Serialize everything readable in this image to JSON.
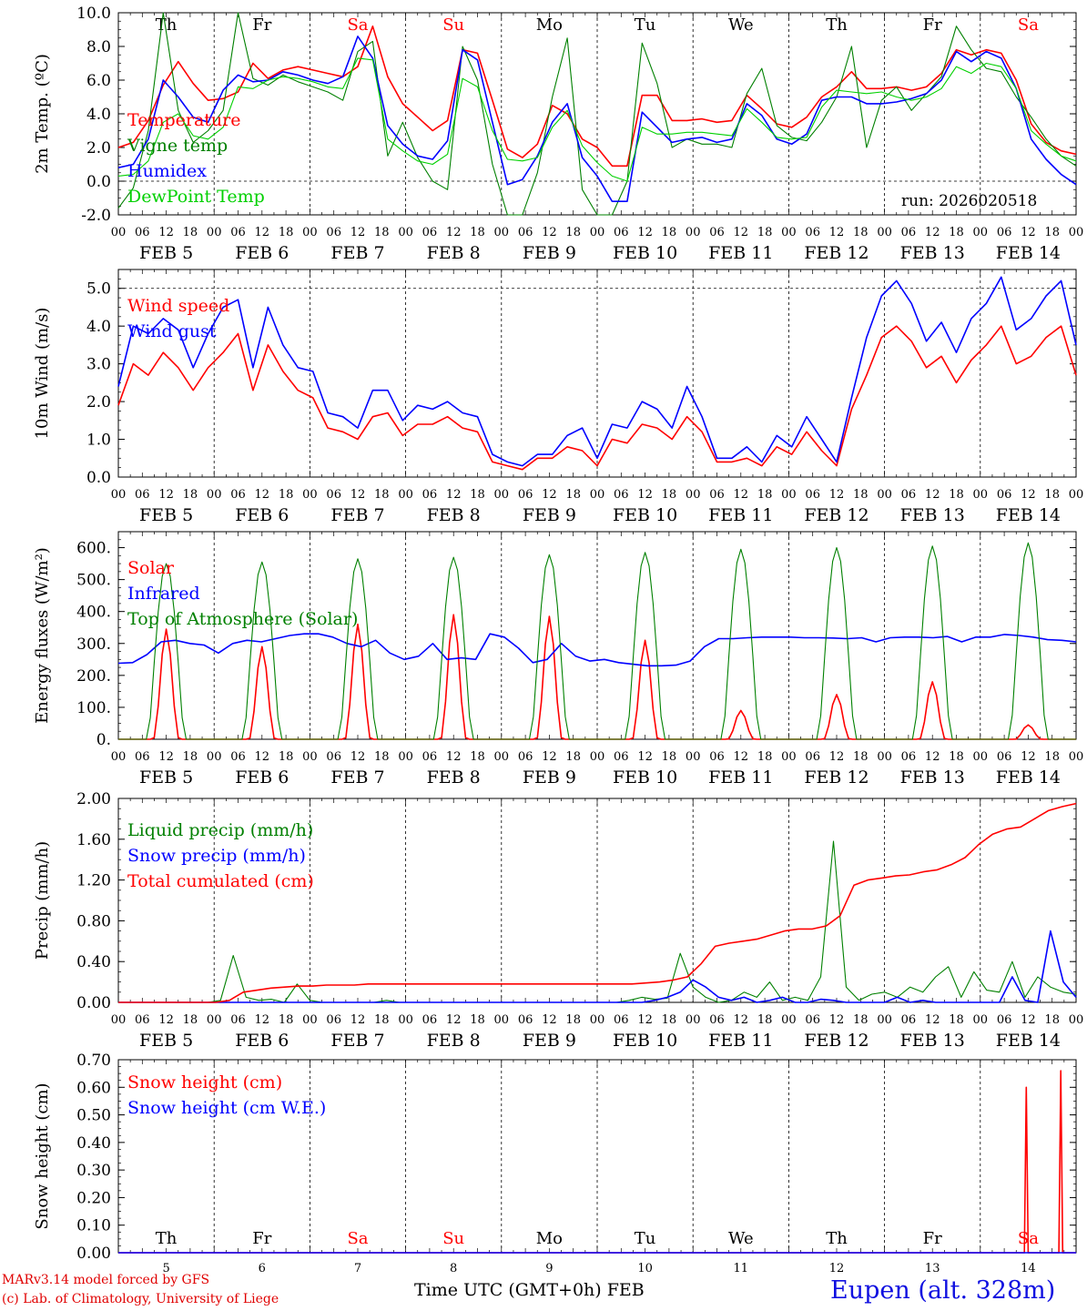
{
  "chart_data": {
    "type": "line",
    "time_axis": {
      "start": "2026-02-05T00:00Z",
      "days": 10,
      "hour_ticks": [
        "00",
        "06",
        "12",
        "18"
      ],
      "end_tick": "00",
      "month": "FEB",
      "date_labels": [
        "FEB  5",
        "FEB  6",
        "FEB  7",
        "FEB  8",
        "FEB  9",
        "FEB 10",
        "FEB 11",
        "FEB 12",
        "FEB 13",
        "FEB 14"
      ],
      "day_numbers": [
        "5",
        "6",
        "7",
        "8",
        "9",
        "10",
        "11",
        "12",
        "13",
        "14"
      ],
      "weekdays": [
        "Th",
        "Fr",
        "Sa",
        "Su",
        "Mo",
        "Tu",
        "We",
        "Th",
        "Fr",
        "Sa"
      ],
      "weekend_indices": [
        2,
        3,
        9
      ],
      "x_title": "Time UTC (GMT+0h)",
      "x_title_month": "FEB"
    },
    "colors": {
      "red": "#ff0000",
      "blue": "#0000ff",
      "green": "#008000",
      "lightgreen": "#00d000"
    },
    "run": "run: 2026020518",
    "panels": [
      {
        "id": "temp",
        "ylabel": "2m Temp. (ºC)",
        "ylim": [
          -2,
          10
        ],
        "yticks": [
          -2,
          0,
          2,
          4,
          6,
          8,
          10
        ],
        "tick_labels": [
          "-2.0",
          "0.0",
          "2.0",
          "4.0",
          "6.0",
          "8.0",
          "10.0"
        ],
        "ref_line": 0,
        "series": [
          {
            "name": "Temperature",
            "color": "#ff0000",
            "values": [
              2.0,
              2.3,
              3.6,
              5.7,
              7.1,
              5.8,
              4.8,
              4.9,
              5.3,
              7.0,
              6.1,
              6.6,
              6.8,
              6.6,
              6.4,
              6.2,
              6.8,
              9.2,
              6.2,
              4.6,
              3.8,
              3.0,
              3.6,
              7.8,
              7.6,
              4.8,
              1.9,
              1.4,
              2.2,
              4.5,
              4.0,
              2.5,
              2.0,
              0.9,
              0.9,
              5.1,
              5.1,
              3.6,
              3.6,
              3.7,
              3.5,
              3.6,
              5.1,
              4.3,
              3.4,
              3.2,
              3.8,
              5.0,
              5.6,
              6.5,
              5.5,
              5.5,
              5.6,
              5.4,
              5.6,
              6.4,
              7.8,
              7.5,
              7.8,
              7.6,
              6.0,
              3.4,
              2.3,
              1.8,
              1.6
            ]
          },
          {
            "name": "Vigne temp",
            "color": "#008000",
            "values": [
              -1.6,
              -0.4,
              3.0,
              10.0,
              4.2,
              2.3,
              3.0,
              4.2,
              10.0,
              6.1,
              5.7,
              6.3,
              5.9,
              5.6,
              5.3,
              4.8,
              7.7,
              8.3,
              1.5,
              3.5,
              1.4,
              0.0,
              -0.5,
              8.0,
              6.0,
              1.0,
              -2.0,
              -2.0,
              0.5,
              5.0,
              8.5,
              -0.5,
              -2.0,
              -2.0,
              0.0,
              8.2,
              5.8,
              2.0,
              2.5,
              2.2,
              2.2,
              2.0,
              5.2,
              6.7,
              3.3,
              2.6,
              2.4,
              3.5,
              5.0,
              8.0,
              2.0,
              4.8,
              5.6,
              4.2,
              5.2,
              6.2,
              9.2,
              7.8,
              6.7,
              6.5,
              5.0,
              3.8,
              2.5,
              1.5,
              0.9
            ]
          },
          {
            "name": "Humidex",
            "color": "#0000ff",
            "values": [
              0.8,
              1.0,
              2.5,
              6.0,
              5.0,
              3.8,
              3.5,
              5.4,
              6.3,
              5.9,
              6.0,
              6.5,
              6.3,
              6.0,
              5.8,
              6.2,
              8.6,
              7.3,
              3.3,
              2.2,
              1.5,
              1.3,
              2.4,
              7.8,
              7.2,
              3.5,
              -0.2,
              0.1,
              1.5,
              3.5,
              4.6,
              1.4,
              0.3,
              -1.2,
              -1.2,
              4.1,
              3.2,
              2.3,
              2.5,
              2.6,
              2.3,
              2.5,
              4.6,
              3.9,
              2.5,
              2.2,
              2.8,
              4.8,
              5.0,
              5.0,
              4.6,
              4.6,
              4.7,
              4.9,
              5.2,
              6.0,
              7.7,
              7.1,
              7.7,
              7.3,
              5.5,
              2.5,
              1.3,
              0.4,
              -0.2
            ]
          },
          {
            "name": "DewPoint Temp",
            "color": "#00d000",
            "values": [
              0.3,
              0.4,
              1.2,
              3.5,
              4.0,
              2.7,
              2.5,
              3.2,
              5.6,
              5.5,
              6.0,
              6.2,
              6.1,
              5.9,
              5.6,
              5.5,
              7.3,
              7.2,
              2.5,
              1.8,
              1.2,
              1.0,
              1.6,
              6.1,
              5.6,
              3.0,
              1.3,
              1.2,
              1.4,
              3.2,
              4.2,
              2.1,
              1.1,
              0.3,
              0.0,
              3.2,
              2.8,
              2.8,
              2.9,
              2.9,
              2.8,
              2.7,
              4.3,
              3.5,
              2.6,
              2.5,
              2.6,
              4.4,
              5.4,
              5.3,
              5.2,
              5.3,
              5.0,
              4.8,
              5.0,
              5.5,
              6.8,
              6.4,
              7.0,
              6.8,
              5.5,
              3.0,
              2.2,
              1.5,
              1.2
            ]
          }
        ]
      },
      {
        "id": "wind",
        "ylabel": "10m Wind (m/s)",
        "ylim": [
          0,
          5.5
        ],
        "yticks": [
          0,
          1,
          2,
          3,
          4,
          5
        ],
        "tick_labels": [
          "0.0",
          "1.0",
          "2.0",
          "3.0",
          "4.0",
          "5.0"
        ],
        "ref_line": 5,
        "series": [
          {
            "name": "Wind speed",
            "color": "#ff0000",
            "values": [
              1.9,
              3.0,
              2.7,
              3.3,
              2.9,
              2.3,
              2.9,
              3.3,
              3.8,
              2.3,
              3.5,
              2.8,
              2.3,
              2.1,
              1.3,
              1.2,
              1.0,
              1.6,
              1.7,
              1.1,
              1.4,
              1.4,
              1.6,
              1.3,
              1.2,
              0.4,
              0.3,
              0.2,
              0.5,
              0.5,
              0.8,
              0.7,
              0.3,
              1.0,
              0.9,
              1.4,
              1.3,
              1.0,
              1.6,
              1.2,
              0.4,
              0.4,
              0.5,
              0.3,
              0.8,
              0.6,
              1.2,
              0.7,
              0.3,
              1.8,
              2.7,
              3.7,
              4.0,
              3.6,
              2.9,
              3.2,
              2.5,
              3.1,
              3.5,
              4.0,
              3.0,
              3.2,
              3.7,
              4.0,
              2.7
            ]
          },
          {
            "name": "Wind gust",
            "color": "#0000ff",
            "values": [
              2.4,
              4.0,
              3.8,
              4.2,
              3.9,
              2.9,
              3.8,
              4.5,
              4.7,
              2.9,
              4.5,
              3.5,
              2.9,
              2.8,
              1.7,
              1.6,
              1.3,
              2.3,
              2.3,
              1.5,
              1.9,
              1.8,
              2.0,
              1.7,
              1.6,
              0.6,
              0.4,
              0.3,
              0.6,
              0.6,
              1.1,
              1.3,
              0.5,
              1.4,
              1.3,
              2.0,
              1.8,
              1.3,
              2.4,
              1.6,
              0.5,
              0.5,
              0.8,
              0.4,
              1.1,
              0.8,
              1.6,
              1.0,
              0.4,
              2.1,
              3.7,
              4.8,
              5.2,
              4.6,
              3.6,
              4.1,
              3.3,
              4.2,
              4.6,
              5.3,
              3.9,
              4.2,
              4.8,
              5.2,
              3.5
            ]
          }
        ]
      },
      {
        "id": "flux",
        "ylabel": "Energy fluxes (W/m²)",
        "ylim": [
          0,
          650
        ],
        "yticks": [
          0,
          100,
          200,
          300,
          400,
          500,
          600
        ],
        "tick_labels": [
          "0.",
          "100.",
          "200.",
          "300.",
          "400.",
          "500.",
          "600."
        ],
        "ref_line": null,
        "series": [
          {
            "name": "Solar",
            "color": "#ff0000",
            "peaks": [
              345,
              290,
              360,
              390,
              385,
              310,
              90,
              140,
              180,
              45
            ]
          },
          {
            "name": "Infrared",
            "color": "#0000ff",
            "values": [
              238,
              240,
              265,
              305,
              310,
              300,
              295,
              270,
              300,
              310,
              305,
              315,
              325,
              330,
              330,
              320,
              300,
              290,
              310,
              270,
              250,
              260,
              300,
              250,
              255,
              250,
              330,
              320,
              285,
              240,
              250,
              300,
              260,
              245,
              250,
              240,
              235,
              230,
              230,
              232,
              245,
              290,
              315,
              315,
              318,
              320,
              320,
              320,
              318,
              318,
              317,
              315,
              318,
              305,
              318,
              320,
              320,
              318,
              322,
              305,
              320,
              320,
              328,
              325,
              320,
              312,
              310,
              305
            ]
          },
          {
            "name": "Top of Atmosphere (Solar)",
            "color": "#008000",
            "peaks": [
              550,
              555,
              565,
              570,
              578,
              585,
              595,
              600,
              605,
              615
            ]
          }
        ]
      },
      {
        "id": "precip",
        "ylabel": "Precip (mm/h)",
        "ylim": [
          0,
          2
        ],
        "yticks": [
          0,
          0.4,
          0.8,
          1.2,
          1.6,
          2.0
        ],
        "tick_labels": [
          "0.00",
          "0.40",
          "0.80",
          "1.20",
          "1.60",
          "2.00"
        ],
        "ref_line": null,
        "series": [
          {
            "name": "Liquid precip (mm/h)",
            "color": "#008000",
            "values": [
              0,
              0,
              0,
              0,
              0,
              0,
              0,
              0,
              0.02,
              0.46,
              0.05,
              0.02,
              0.03,
              0.0,
              0.18,
              0.02,
              0.0,
              0.0,
              0.0,
              0.0,
              0.0,
              0.02,
              0.0,
              0.0,
              0.0,
              0.0,
              0.0,
              0.0,
              0.0,
              0.0,
              0.0,
              0.0,
              0.0,
              0.0,
              0.0,
              0.0,
              0.0,
              0.0,
              0.0,
              0.0,
              0.02,
              0.05,
              0.03,
              0.04,
              0.48,
              0.15,
              0.05,
              0.0,
              0.02,
              0.1,
              0.05,
              0.2,
              0.02,
              0.05,
              0.02,
              0.25,
              1.58,
              0.15,
              0.02,
              0.08,
              0.1,
              0.05,
              0.15,
              0.1,
              0.25,
              0.35,
              0.05,
              0.3,
              0.12,
              0.1,
              0.4,
              0.05,
              0.25,
              0.15,
              0.1,
              0.08
            ]
          },
          {
            "name": "Snow precip (mm/h)",
            "color": "#0000ff",
            "values": [
              0,
              0,
              0,
              0,
              0,
              0,
              0,
              0,
              0,
              0,
              0,
              0,
              0,
              0,
              0,
              0,
              0,
              0,
              0,
              0,
              0,
              0,
              0,
              0,
              0,
              0,
              0,
              0,
              0,
              0,
              0,
              0,
              0,
              0,
              0,
              0,
              0,
              0,
              0,
              0,
              0,
              0,
              0.02,
              0.05,
              0.1,
              0.22,
              0.15,
              0.05,
              0.02,
              0.05,
              0.0,
              0.02,
              0.05,
              0.0,
              0.0,
              0.03,
              0.02,
              0.0,
              0.0,
              0.0,
              0.0,
              0.05,
              0.0,
              0.02,
              0.0,
              0.0,
              0.0,
              0.0,
              0.0,
              0.0,
              0.25,
              0.02,
              0.0,
              0.7,
              0.2,
              0.05
            ]
          },
          {
            "name": "Total cumulated (cm)",
            "color": "#ff0000",
            "values": [
              0,
              0,
              0,
              0,
              0,
              0,
              0,
              0,
              0.02,
              0.1,
              0.12,
              0.14,
              0.15,
              0.16,
              0.16,
              0.17,
              0.17,
              0.17,
              0.18,
              0.18,
              0.18,
              0.18,
              0.18,
              0.18,
              0.18,
              0.18,
              0.18,
              0.18,
              0.18,
              0.18,
              0.18,
              0.18,
              0.18,
              0.18,
              0.18,
              0.18,
              0.18,
              0.18,
              0.19,
              0.2,
              0.22,
              0.25,
              0.38,
              0.55,
              0.58,
              0.6,
              0.62,
              0.66,
              0.7,
              0.72,
              0.72,
              0.75,
              0.85,
              1.15,
              1.2,
              1.22,
              1.24,
              1.25,
              1.28,
              1.3,
              1.35,
              1.42,
              1.55,
              1.65,
              1.7,
              1.72,
              1.8,
              1.88,
              1.92,
              1.95
            ]
          }
        ]
      },
      {
        "id": "snow",
        "ylabel": "Snow height (cm)",
        "ylim": [
          0,
          0.7
        ],
        "yticks": [
          0,
          0.1,
          0.2,
          0.3,
          0.4,
          0.5,
          0.6,
          0.7
        ],
        "tick_labels": [
          "0.00",
          "0.10",
          "0.20",
          "0.30",
          "0.40",
          "0.50",
          "0.60",
          "0.70"
        ],
        "ref_line": null,
        "series": [
          {
            "name": "Snow height (cm)",
            "color": "#ff0000",
            "spikes": [
              {
                "t": 9.48,
                "v": 0.6
              },
              {
                "t": 9.84,
                "v": 0.66
              }
            ]
          },
          {
            "name": "Snow height (cm W.E.)",
            "color": "#0000ff",
            "values": [
              0
            ]
          }
        ]
      }
    ]
  },
  "footer": {
    "credit_line1": "MARv3.14 model forced by GFS",
    "credit_line2": "(c) Lab. of Climatology, University of Liege",
    "station": "Eupen (alt. 328m)"
  }
}
